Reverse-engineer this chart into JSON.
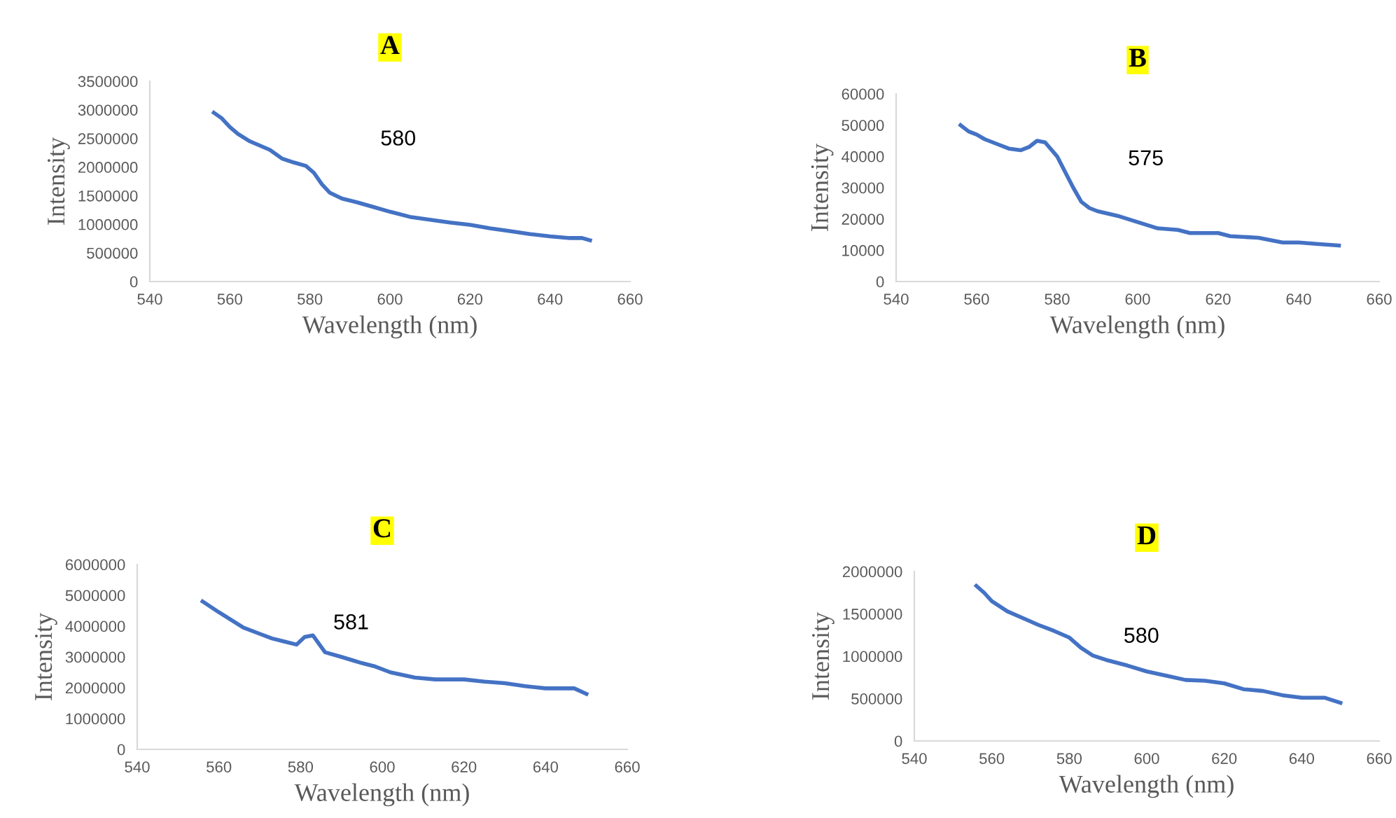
{
  "chart_data": [
    {
      "type": "line",
      "title": "A",
      "xlabel": "Wavelength (nm)",
      "ylabel": "Intensity",
      "annotations": [
        "580"
      ],
      "xlim": [
        540,
        660
      ],
      "xticks": [
        540,
        560,
        580,
        600,
        620,
        640,
        660
      ],
      "ylim": [
        0,
        3500000
      ],
      "yticks": [
        0,
        500000,
        1000000,
        1500000,
        2000000,
        2500000,
        3000000,
        3500000
      ],
      "grid": false,
      "legend": false,
      "series": [
        {
          "color": "#4472c4",
          "x": [
            556,
            558,
            560,
            562,
            565,
            570,
            573,
            576,
            579,
            581,
            583,
            585,
            588,
            592,
            596,
            600,
            605,
            610,
            615,
            620,
            625,
            630,
            635,
            640,
            645,
            648,
            650
          ],
          "values": [
            2950000,
            2850000,
            2700000,
            2580000,
            2450000,
            2300000,
            2150000,
            2080000,
            2020000,
            1900000,
            1700000,
            1550000,
            1450000,
            1380000,
            1300000,
            1220000,
            1130000,
            1080000,
            1030000,
            990000,
            930000,
            880000,
            830000,
            790000,
            760000,
            760000,
            720000
          ]
        }
      ]
    },
    {
      "type": "line",
      "title": "B",
      "xlabel": "Wavelength (nm)",
      "ylabel": "Intensity",
      "annotations": [
        "575"
      ],
      "xlim": [
        540,
        660
      ],
      "xticks": [
        540,
        560,
        580,
        600,
        620,
        640,
        660
      ],
      "ylim": [
        0,
        60000
      ],
      "yticks": [
        0,
        10000,
        20000,
        30000,
        40000,
        50000,
        60000
      ],
      "grid": false,
      "legend": false,
      "series": [
        {
          "color": "#4472c4",
          "x": [
            556,
            558,
            560,
            562,
            565,
            568,
            571,
            573,
            575,
            577,
            580,
            582,
            584,
            586,
            588,
            590,
            595,
            600,
            605,
            610,
            613,
            620,
            623,
            630,
            636,
            640,
            645,
            650
          ],
          "values": [
            50000,
            48000,
            47000,
            45500,
            44000,
            42500,
            42000,
            43000,
            45000,
            44500,
            40000,
            35000,
            30000,
            25500,
            23500,
            22500,
            21000,
            19000,
            17000,
            16500,
            15500,
            15500,
            14500,
            14000,
            12500,
            12500,
            12000,
            11500
          ]
        }
      ]
    },
    {
      "type": "line",
      "title": "C",
      "xlabel": "Wavelength (nm)",
      "ylabel": "Intensity",
      "annotations": [
        "581"
      ],
      "xlim": [
        540,
        660
      ],
      "xticks": [
        540,
        560,
        580,
        600,
        620,
        640,
        660
      ],
      "ylim": [
        0,
        6000000
      ],
      "yticks": [
        0,
        1000000,
        2000000,
        3000000,
        4000000,
        5000000,
        6000000
      ],
      "grid": false,
      "legend": false,
      "series": [
        {
          "color": "#4472c4",
          "x": [
            556,
            560,
            563,
            566,
            570,
            573,
            576,
            579,
            581,
            583,
            586,
            590,
            595,
            598,
            602,
            608,
            613,
            620,
            625,
            630,
            635,
            640,
            647,
            650
          ],
          "values": [
            4800000,
            4450000,
            4200000,
            3950000,
            3750000,
            3600000,
            3500000,
            3400000,
            3650000,
            3700000,
            3150000,
            3000000,
            2800000,
            2700000,
            2500000,
            2330000,
            2270000,
            2270000,
            2200000,
            2150000,
            2050000,
            1980000,
            1980000,
            1800000
          ]
        }
      ]
    },
    {
      "type": "line",
      "title": "D",
      "xlabel": "Wavelength (nm)",
      "ylabel": "Intensity",
      "annotations": [
        "580"
      ],
      "xlim": [
        540,
        660
      ],
      "xticks": [
        540,
        560,
        580,
        600,
        620,
        640,
        660
      ],
      "ylim": [
        0,
        2000000
      ],
      "yticks": [
        0,
        500000,
        1000000,
        1500000,
        2000000
      ],
      "grid": false,
      "legend": false,
      "series": [
        {
          "color": "#4472c4",
          "x": [
            556,
            558,
            560,
            564,
            568,
            572,
            576,
            580,
            583,
            586,
            590,
            595,
            600,
            605,
            610,
            615,
            620,
            625,
            630,
            635,
            640,
            646,
            650
          ],
          "values": [
            1830000,
            1750000,
            1650000,
            1530000,
            1450000,
            1370000,
            1300000,
            1220000,
            1100000,
            1010000,
            950000,
            890000,
            820000,
            770000,
            720000,
            710000,
            680000,
            610000,
            590000,
            540000,
            510000,
            510000,
            450000
          ]
        }
      ]
    }
  ]
}
